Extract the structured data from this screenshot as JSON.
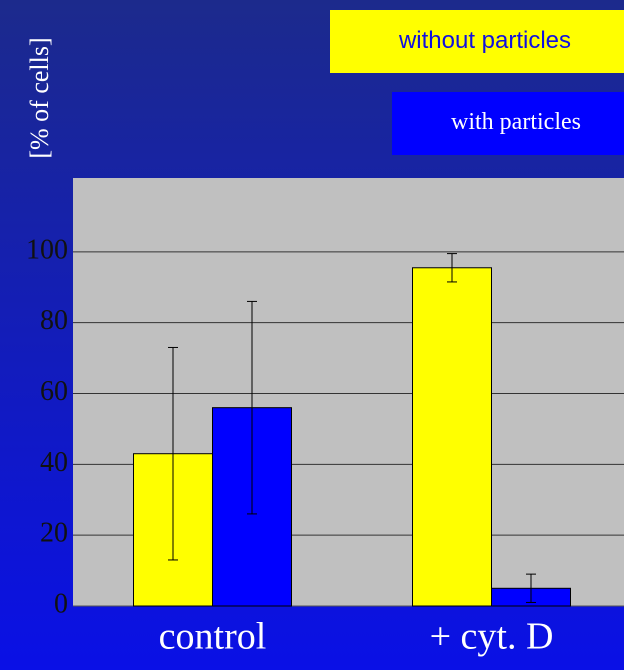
{
  "chart_data": {
    "type": "bar",
    "ylabel": "[% of cells]",
    "categories": [
      "control",
      "+ cyt. D"
    ],
    "series": [
      {
        "name": "without particles",
        "color": "#ffff00",
        "values": [
          43,
          95.5
        ],
        "errors": [
          30,
          4
        ]
      },
      {
        "name": "with particles",
        "color": "#0000ff",
        "values": [
          56,
          5
        ],
        "errors": [
          30,
          4
        ]
      }
    ],
    "ylim": [
      0,
      120
    ],
    "yticks": [
      0,
      20,
      40,
      60,
      80,
      100
    ],
    "grid": true
  }
}
